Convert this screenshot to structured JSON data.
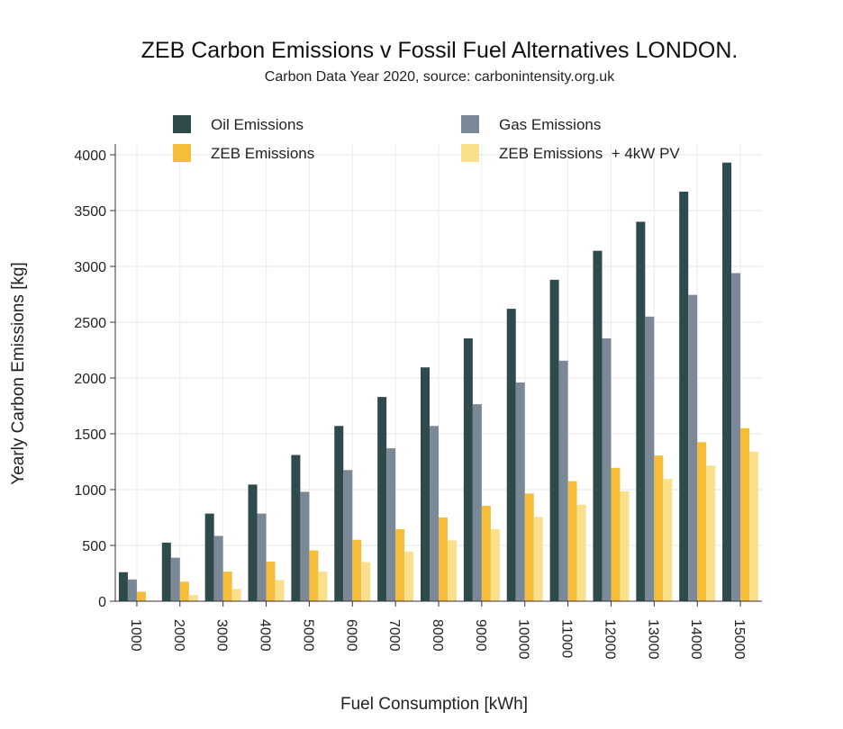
{
  "chart_data": {
    "type": "bar",
    "title": "ZEB Carbon Emissions v Fossil Fuel Alternatives LONDON.",
    "subtitle": "Carbon Data Year 2020, source: carbonintensity.org.uk",
    "xlabel": "Fuel Consumption [kWh]",
    "ylabel": "Yearly Carbon Emissions [kg]",
    "ylim": [
      0,
      4000
    ],
    "yticks": [
      0,
      500,
      1000,
      1500,
      2000,
      2500,
      3000,
      3500,
      4000
    ],
    "grid": true,
    "legend_position": "top",
    "categories": [
      "1000",
      "2000",
      "3000",
      "4000",
      "5000",
      "6000",
      "7000",
      "8000",
      "9000",
      "10000",
      "11000",
      "12000",
      "13000",
      "14000",
      "15000"
    ],
    "series": [
      {
        "name": "Oil Emissions",
        "color": "#2f4a4a",
        "values": [
          260,
          525,
          785,
          1045,
          1310,
          1570,
          1830,
          2095,
          2355,
          2620,
          2880,
          3140,
          3400,
          3670,
          3930
        ]
      },
      {
        "name": "Gas Emissions",
        "color": "#7a8898",
        "values": [
          195,
          390,
          585,
          785,
          980,
          1175,
          1370,
          1570,
          1765,
          1960,
          2155,
          2355,
          2550,
          2745,
          2940
        ]
      },
      {
        "name": "ZEB Emissions",
        "color": "#f5bd3a",
        "values": [
          85,
          175,
          265,
          355,
          455,
          550,
          645,
          750,
          855,
          965,
          1075,
          1195,
          1305,
          1425,
          1550
        ]
      },
      {
        "name": "ZEB Emissions  + 4kW PV",
        "color": "#fbe08c",
        "values": [
          5,
          55,
          110,
          190,
          265,
          350,
          445,
          545,
          645,
          755,
          865,
          985,
          1095,
          1215,
          1340
        ]
      }
    ]
  }
}
